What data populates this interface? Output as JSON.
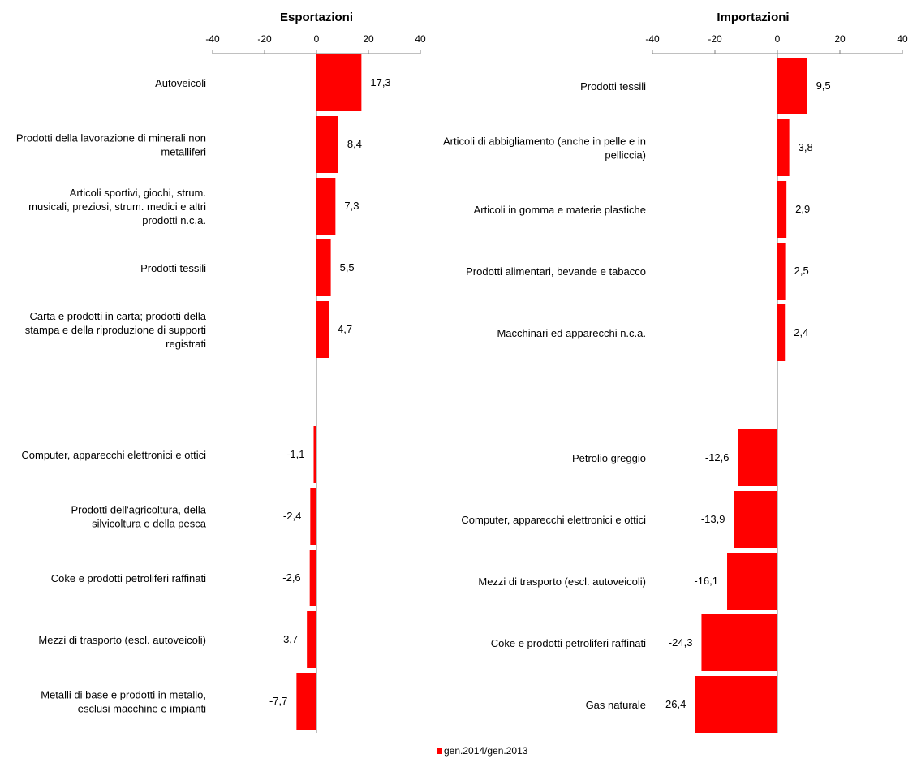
{
  "chart_data": [
    {
      "type": "bar",
      "orientation": "horizontal",
      "title": "Esportazioni",
      "xlim": [
        -40,
        40
      ],
      "ticks": [
        -40,
        -20,
        0,
        20,
        40
      ],
      "grid": false,
      "categories": [
        "Autoveicoli",
        "Prodotti della lavorazione di minerali non metalliferi",
        "Articoli sportivi, giochi, strum. musicali, preziosi, strum. medici e altri prodotti n.c.a.",
        "Prodotti tessili",
        "Carta e prodotti in carta; prodotti della stampa e della riproduzione di supporti registrati",
        "Computer, apparecchi elettronici e ottici",
        "Prodotti dell'agricoltura, della silvicoltura e della pesca",
        "Coke e prodotti petroliferi raffinati",
        "Mezzi di trasporto (escl. autoveicoli)",
        "Metalli di base e prodotti in metallo, esclusi macchine e impianti"
      ],
      "values": [
        17.3,
        8.4,
        7.3,
        5.5,
        4.7,
        -1.1,
        -2.4,
        -2.6,
        -3.7,
        -7.7
      ],
      "value_labels": [
        "17,3",
        "8,4",
        "7,3",
        "5,5",
        "4,7",
        "-1,1",
        "-2,4",
        "-2,6",
        "-3,7",
        "-7,7"
      ],
      "series": [
        {
          "name": "gen.2014/gen.2013",
          "values": [
            17.3,
            8.4,
            7.3,
            5.5,
            4.7,
            -1.1,
            -2.4,
            -2.6,
            -3.7,
            -7.7
          ]
        }
      ]
    },
    {
      "type": "bar",
      "orientation": "horizontal",
      "title": "Importazioni",
      "xlim": [
        -40,
        40
      ],
      "ticks": [
        -40,
        -20,
        0,
        20,
        40
      ],
      "grid": false,
      "categories": [
        "Prodotti tessili",
        "Articoli di abbigliamento (anche in pelle e in pelliccia)",
        "Articoli in gomma e materie plastiche",
        "Prodotti alimentari, bevande e tabacco",
        "Macchinari ed apparecchi n.c.a.",
        "Petrolio greggio",
        "Computer, apparecchi elettronici e ottici",
        "Mezzi di trasporto (escl. autoveicoli)",
        "Coke e prodotti petroliferi raffinati",
        "Gas naturale"
      ],
      "values": [
        9.5,
        3.8,
        2.9,
        2.5,
        2.4,
        -12.6,
        -13.9,
        -16.1,
        -24.3,
        -26.4
      ],
      "value_labels": [
        "9,5",
        "3,8",
        "2,9",
        "2,5",
        "2,4",
        "-12,6",
        "-13,9",
        "-16,1",
        "-24,3",
        "-26,4"
      ],
      "series": [
        {
          "name": "gen.2014/gen.2013",
          "values": [
            9.5,
            3.8,
            2.9,
            2.5,
            2.4,
            -12.6,
            -13.9,
            -16.1,
            -24.3,
            -26.4
          ]
        }
      ]
    }
  ],
  "legend": {
    "label": "gen.2014/gen.2013",
    "color": "#ff0000",
    "position": "bottom-center"
  },
  "colors": {
    "bar": "#ff0000",
    "axis": "#808080"
  }
}
